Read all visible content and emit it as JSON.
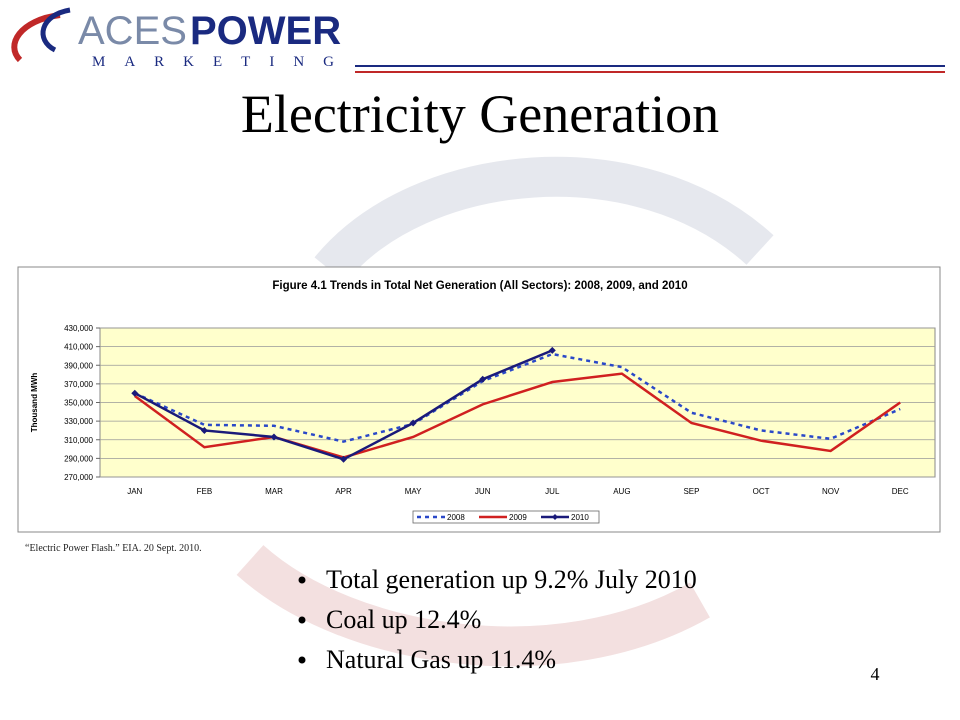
{
  "logo": {
    "name": "ACES",
    "name_bold": "POWER",
    "tagline": "MARKETING"
  },
  "title": "Electricity Generation",
  "chart_data": {
    "type": "line",
    "title": "Figure 4.1  Trends in Total Net Generation (All Sectors):  2008, 2009, and 2010",
    "y_label": "Thousand MWh",
    "categories": [
      "JAN",
      "FEB",
      "MAR",
      "APR",
      "MAY",
      "JUN",
      "JUL",
      "AUG",
      "SEP",
      "OCT",
      "NOV",
      "DEC"
    ],
    "series": [
      {
        "name": "2008",
        "color": "#2a48c8",
        "dash": "dotted",
        "values": [
          360000,
          326000,
          325000,
          308000,
          327000,
          373000,
          402000,
          388000,
          339000,
          320000,
          311000,
          343000
        ]
      },
      {
        "name": "2009",
        "color": "#d02020",
        "dash": "solid",
        "values": [
          357000,
          302000,
          313000,
          291000,
          313000,
          348000,
          372000,
          381000,
          328000,
          309000,
          298000,
          350000
        ]
      },
      {
        "name": "2010",
        "color": "#1a1a7a",
        "dash": "solid",
        "marker": "diamond",
        "values": [
          360000,
          320000,
          313000,
          289000,
          328000,
          375000,
          406000,
          null,
          null,
          null,
          null,
          null
        ]
      }
    ],
    "ylim": [
      270000,
      430000
    ],
    "yticks": [
      {
        "value": 270000,
        "label": "270,000"
      },
      {
        "value": 290000,
        "label": "290,000"
      },
      {
        "value": 310000,
        "label": "310,000"
      },
      {
        "value": 330000,
        "label": "330,000"
      },
      {
        "value": 350000,
        "label": "350,000"
      },
      {
        "value": 370000,
        "label": "370,000"
      },
      {
        "value": 390000,
        "label": "390,000"
      },
      {
        "value": 410000,
        "label": "410,000"
      },
      {
        "value": 430000,
        "label": "430,000"
      }
    ],
    "grid": true,
    "legend": "bottom"
  },
  "source": "“Electric Power Flash.” EIA. 20 Sept. 2010.",
  "bullets": [
    "Total generation up 9.2% July 2010",
    "Coal up 12.4%",
    "Natural Gas up 11.4%"
  ],
  "page_number": "4"
}
